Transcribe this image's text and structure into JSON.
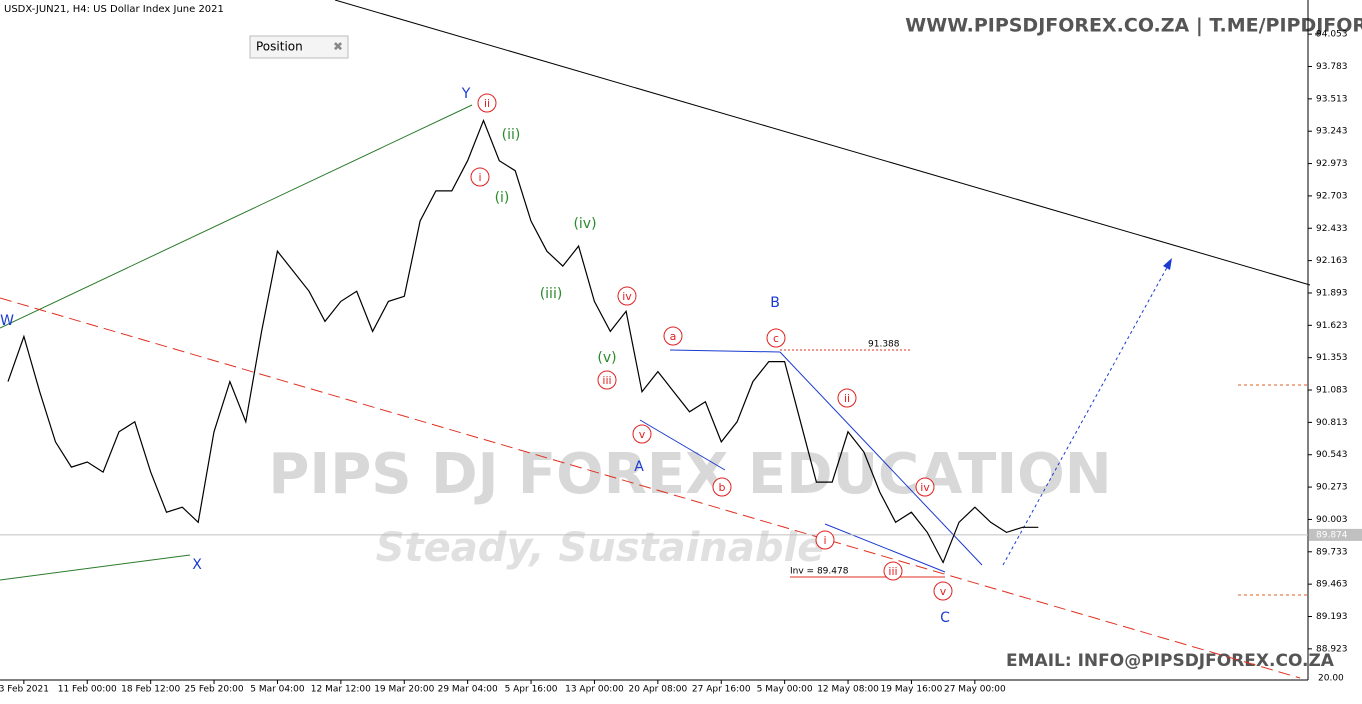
{
  "chart_data": {
    "type": "line",
    "title": "USDX-JUN21, H4:  US Dollar Index June 2021",
    "watermark_top": "WWW.PIPSDJFOREX.CO.ZA | T.ME/PIPDJFOREX",
    "watermark_bottom": "EMAIL: INFO@PIPSDJFOREX.CO.ZA",
    "watermark_center": "PIPS DJ FOREX EDUCATION",
    "watermark_slogan": "Steady, Sustainable",
    "panel_label": "Position",
    "current_price": 89.874,
    "subwindow_label": "20.00",
    "level_label": "91.388",
    "inv_label": "Inv = 89.478",
    "categories": [
      null,
      "3 Feb 2021",
      null,
      null,
      null,
      "11 Feb 00:00",
      null,
      null,
      null,
      "18 Feb 12:00",
      null,
      null,
      null,
      "25 Feb 20:00",
      null,
      null,
      null,
      "5 Mar 04:00",
      null,
      null,
      null,
      "12 Mar 12:00",
      null,
      null,
      null,
      "19 Mar 20:00",
      null,
      null,
      null,
      "29 Mar 04:00",
      null,
      null,
      null,
      "5 Apr 16:00",
      null,
      null,
      null,
      "13 Apr 00:00",
      null,
      null,
      null,
      "20 Apr 08:00",
      null,
      null,
      null,
      "27 Apr 16:00",
      null,
      null,
      null,
      "5 May 00:00",
      null,
      null,
      null,
      "12 May 08:00",
      null,
      null,
      null,
      "19 May 16:00",
      null,
      null,
      null,
      "27 May 00:00",
      null,
      null,
      null,
      null
    ],
    "series": [
      {
        "name": "USDX-JUN21",
        "color": "#000000",
        "values": [
          91.153,
          91.53,
          91.069,
          90.65,
          90.44,
          90.482,
          90.398,
          90.734,
          90.818,
          90.398,
          90.063,
          90.105,
          89.979,
          90.734,
          91.153,
          90.818,
          91.572,
          92.242,
          92.075,
          91.907,
          91.656,
          91.823,
          91.907,
          91.572,
          91.823,
          91.865,
          92.494,
          92.745,
          92.745,
          92.997,
          93.332,
          92.997,
          92.913,
          92.494,
          92.242,
          92.117,
          92.284,
          91.823,
          91.572,
          91.74,
          91.069,
          91.237,
          91.069,
          90.901,
          90.985,
          90.65,
          90.818,
          91.153,
          91.32,
          91.32,
          90.818,
          90.315,
          90.315,
          90.734,
          90.566,
          90.231,
          89.979,
          90.063,
          89.895,
          89.644,
          89.979,
          90.105,
          89.979,
          89.895,
          89.937,
          89.937
        ]
      }
    ],
    "ylim": [
      88.663,
      94.338
    ],
    "yticks": [
      94.053,
      93.783,
      93.513,
      93.243,
      92.973,
      92.703,
      92.433,
      92.163,
      91.893,
      91.623,
      91.353,
      91.083,
      90.813,
      90.543,
      90.273,
      {
        "value": 90.003,
        "label": "90.003"
      },
      89.733,
      89.463,
      89.193,
      88.923
    ],
    "annotations": [
      "Y",
      "ii",
      "(ii)",
      "i",
      "(i)",
      "(iv)",
      "(iii)",
      "iv",
      "W",
      "B",
      "a",
      "c",
      "(v)",
      "iii",
      "ii",
      "v",
      "A",
      "b",
      "iv",
      "i",
      "iii",
      "X",
      "v",
      "C"
    ]
  }
}
